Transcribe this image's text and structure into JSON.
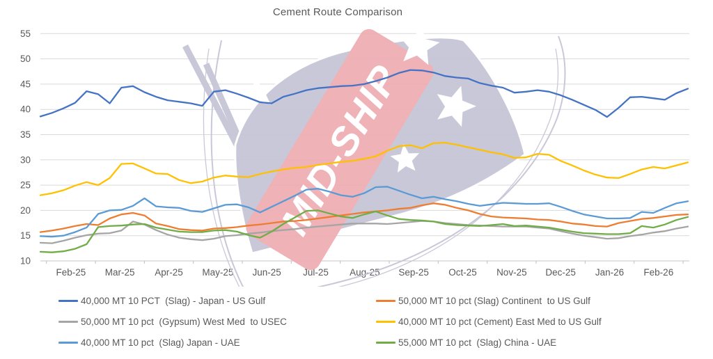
{
  "chart_data": {
    "type": "line",
    "title": "Cement Route Comparison",
    "xlabel": "",
    "ylabel": "",
    "ylim": [
      10,
      55
    ],
    "y_ticks": [
      10,
      15,
      20,
      25,
      30,
      35,
      40,
      45,
      50,
      55
    ],
    "x_tick_labels": [
      "Feb-25",
      "Mar-25",
      "Apr-25",
      "May-25",
      "Jun-25",
      "Jul-25",
      "Aug-25",
      "Sep-25",
      "Oct-25",
      "Nov-25",
      "Dec-25",
      "Jan-26",
      "Feb-26"
    ],
    "x_unit": "weekly",
    "points_per_series": 57,
    "grid": "horizontal",
    "legend_position": "bottom",
    "watermark_text": "MID-SHIP",
    "colors": {
      "gridline": "#d9d9d9",
      "axis_line": "#c6c6c6",
      "tick": "#bfbfbf",
      "axis_text": "#595959",
      "title_text": "#595959",
      "watermark_flag": "#c7c6d6",
      "watermark_band": "#eeaeb4",
      "watermark_text": "#ffffff"
    },
    "series": [
      {
        "name": "40,000 MT 10 PCT  (Slag) - Japan - US Gulf",
        "color": "#4472c4",
        "values": [
          38.6,
          39.3,
          40.2,
          41.3,
          43.6,
          43.0,
          41.2,
          44.3,
          44.6,
          43.4,
          42.5,
          41.8,
          41.5,
          41.2,
          40.7,
          43.5,
          43.8,
          43.1,
          42.3,
          41.4,
          41.2,
          42.5,
          43.1,
          43.8,
          44.2,
          44.4,
          44.6,
          44.7,
          45.0,
          45.6,
          46.3,
          47.2,
          47.8,
          47.7,
          47.3,
          46.6,
          46.3,
          46.1,
          45.2,
          44.7,
          44.3,
          43.3,
          43.5,
          43.8,
          43.5,
          42.8,
          41.9,
          40.9,
          39.9,
          38.5,
          40.3,
          42.4,
          42.5,
          42.2,
          41.9,
          43.2,
          44.1
        ]
      },
      {
        "name": "50,000 MT 10 pct (Slag) Continent  to US Gulf",
        "color": "#ed7d31",
        "values": [
          15.7,
          16.0,
          16.4,
          16.9,
          17.3,
          17.1,
          18.4,
          19.2,
          19.5,
          19.0,
          17.4,
          16.9,
          16.3,
          16.1,
          16.0,
          16.4,
          16.5,
          16.7,
          17.0,
          17.2,
          17.5,
          17.8,
          17.9,
          18.1,
          18.4,
          18.7,
          19.0,
          19.3,
          19.6,
          19.8,
          20.0,
          20.3,
          20.5,
          21.0,
          21.4,
          21.1,
          20.5,
          20.0,
          19.3,
          18.8,
          18.6,
          18.5,
          18.4,
          18.2,
          18.1,
          17.8,
          17.4,
          17.2,
          16.9,
          16.8,
          17.5,
          17.9,
          18.3,
          18.5,
          18.8,
          19.1,
          19.2
        ]
      },
      {
        "name": "50,000 MT 10 pct  (Gypsum) West Med  to USEC",
        "color": "#a5a5a5",
        "values": [
          13.6,
          13.5,
          14.0,
          14.6,
          15.1,
          15.4,
          15.5,
          16.0,
          17.8,
          17.2,
          16.1,
          15.2,
          14.6,
          14.3,
          14.1,
          14.4,
          14.9,
          15.1,
          15.4,
          15.6,
          15.9,
          16.1,
          16.3,
          16.6,
          16.8,
          17.0,
          17.2,
          17.4,
          17.4,
          17.4,
          17.3,
          17.5,
          17.7,
          17.9,
          17.8,
          17.5,
          17.3,
          17.1,
          17.0,
          16.9,
          16.8,
          16.8,
          16.8,
          16.6,
          16.4,
          15.9,
          15.4,
          15.0,
          14.7,
          14.4,
          14.5,
          14.9,
          15.2,
          15.6,
          15.9,
          16.4,
          16.8
        ]
      },
      {
        "name": "40,000 MT 10 pct (Cement) East Med to US Gulf",
        "color": "#ffc000",
        "values": [
          23.0,
          23.4,
          24.0,
          24.9,
          25.6,
          25.0,
          26.4,
          29.2,
          29.3,
          28.3,
          27.3,
          27.2,
          26.0,
          25.4,
          25.7,
          26.5,
          26.9,
          26.7,
          26.6,
          27.2,
          27.7,
          28.1,
          28.4,
          28.6,
          29.0,
          29.3,
          29.6,
          29.8,
          30.2,
          30.7,
          31.8,
          32.7,
          32.9,
          32.3,
          33.3,
          33.4,
          33.0,
          32.5,
          32.0,
          31.5,
          31.1,
          30.4,
          30.5,
          31.2,
          31.0,
          29.8,
          28.9,
          27.9,
          27.1,
          26.5,
          26.4,
          27.2,
          28.1,
          28.6,
          28.3,
          28.9,
          29.5
        ]
      },
      {
        "name": "40,000 MT 10 pct  (Slag) Japan - UAE",
        "color": "#5b9bd5",
        "values": [
          14.9,
          14.8,
          15.0,
          15.7,
          16.6,
          19.3,
          20.0,
          20.1,
          20.9,
          22.4,
          20.8,
          20.6,
          20.5,
          19.9,
          19.7,
          20.4,
          21.1,
          21.2,
          20.6,
          19.6,
          20.7,
          21.8,
          22.9,
          24.1,
          24.3,
          23.7,
          23.0,
          22.7,
          23.4,
          24.6,
          24.7,
          23.9,
          23.1,
          22.4,
          22.7,
          22.2,
          21.8,
          21.3,
          20.9,
          21.2,
          21.5,
          21.4,
          21.3,
          21.3,
          21.4,
          20.7,
          19.9,
          19.2,
          18.8,
          18.4,
          18.4,
          18.5,
          19.7,
          19.5,
          20.5,
          21.4,
          21.8
        ]
      },
      {
        "name": "55,000 MT 10 pct  (Slag) China - UAE",
        "color": "#70ad47",
        "values": [
          11.8,
          11.7,
          11.9,
          12.4,
          13.3,
          16.7,
          16.9,
          17.0,
          17.2,
          17.3,
          16.6,
          16.2,
          15.8,
          15.7,
          15.7,
          16.0,
          16.1,
          15.8,
          15.1,
          14.6,
          15.8,
          17.3,
          18.6,
          19.9,
          20.0,
          19.4,
          18.8,
          18.5,
          19.2,
          19.8,
          19.0,
          18.3,
          18.1,
          18.0,
          17.8,
          17.3,
          17.1,
          17.0,
          16.9,
          17.1,
          17.3,
          16.9,
          17.0,
          16.8,
          16.6,
          16.2,
          15.8,
          15.5,
          15.4,
          15.3,
          15.3,
          15.5,
          16.9,
          16.6,
          17.2,
          18.1,
          18.7
        ]
      }
    ]
  }
}
